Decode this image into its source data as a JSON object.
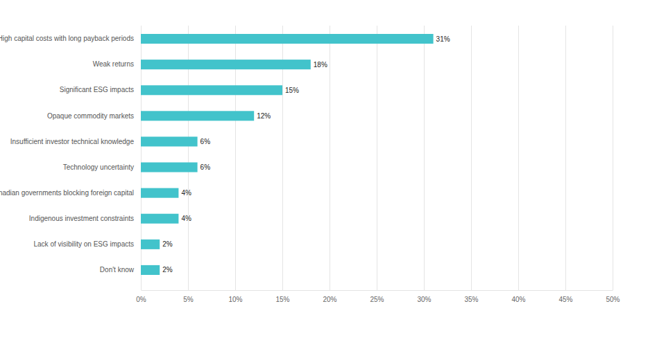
{
  "chart_data": {
    "type": "bar",
    "orientation": "horizontal",
    "categories": [
      "High capital costs with long payback periods",
      "Weak returns",
      "Significant ESG impacts",
      "Opaque commodity markets",
      "Insufficient investor technical knowledge",
      "Technology uncertainty",
      "Canadian governments blocking foreign capital",
      "Indigenous investment constraints",
      "Lack of visibility on ESG impacts",
      "Don't know"
    ],
    "values": [
      31,
      18,
      15,
      12,
      6,
      6,
      4,
      4,
      2,
      2
    ],
    "value_labels": [
      "31%",
      "18%",
      "15%",
      "12%",
      "6%",
      "6%",
      "4%",
      "4%",
      "2%",
      "2%"
    ],
    "color": "#42c3cb",
    "xlim": [
      0,
      50
    ],
    "xticks": [
      {
        "value": 0,
        "label": "0%"
      },
      {
        "value": 5,
        "label": "5%"
      },
      {
        "value": 10,
        "label": "10%"
      },
      {
        "value": 15,
        "label": "15%"
      },
      {
        "value": 20,
        "label": "20%"
      },
      {
        "value": 25,
        "label": "25%"
      },
      {
        "value": 30,
        "label": "30%"
      },
      {
        "value": 35,
        "label": "35%"
      },
      {
        "value": 40,
        "label": "40%"
      },
      {
        "value": 45,
        "label": "45%"
      },
      {
        "value": 50,
        "label": "50%"
      }
    ],
    "grid": true,
    "data_labels": true
  }
}
